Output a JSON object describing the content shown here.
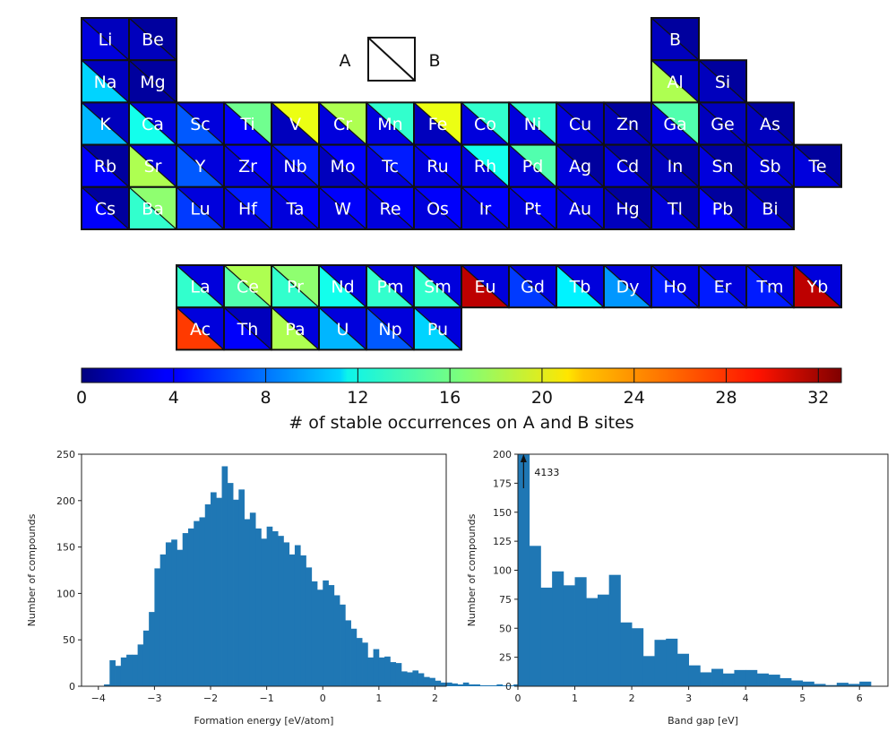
{
  "legend": {
    "a_label": "A",
    "b_label": "B"
  },
  "colorbar": {
    "min": 0,
    "max": 33,
    "ticks": [
      "0",
      "4",
      "8",
      "12",
      "16",
      "20",
      "24",
      "28",
      "32"
    ],
    "tick_values": [
      0,
      4,
      8,
      12,
      16,
      20,
      24,
      28,
      32
    ],
    "title": "# of stable occurrences on A and B sites",
    "colormap": "jet"
  },
  "periodic_table": {
    "cells": [
      {
        "el": "Li",
        "row": 0,
        "col": 0,
        "a": 3,
        "b": 2
      },
      {
        "el": "Be",
        "row": 0,
        "col": 1,
        "a": 2,
        "b": 1
      },
      {
        "el": "B",
        "row": 0,
        "col": 12,
        "a": 2,
        "b": 1
      },
      {
        "el": "Na",
        "row": 1,
        "col": 0,
        "a": 11,
        "b": 2
      },
      {
        "el": "Mg",
        "row": 1,
        "col": 1,
        "a": 1,
        "b": 1
      },
      {
        "el": "Al",
        "row": 1,
        "col": 12,
        "a": 18,
        "b": 2
      },
      {
        "el": "Si",
        "row": 1,
        "col": 13,
        "a": 2,
        "b": 1
      },
      {
        "el": "K",
        "row": 2,
        "col": 0,
        "a": 10,
        "b": 2
      },
      {
        "el": "Ca",
        "row": 2,
        "col": 1,
        "a": 13,
        "b": 3
      },
      {
        "el": "Sc",
        "row": 2,
        "col": 2,
        "a": 7,
        "b": 3
      },
      {
        "el": "Ti",
        "row": 2,
        "col": 3,
        "a": 4,
        "b": 16
      },
      {
        "el": "V",
        "row": 2,
        "col": 4,
        "a": 2,
        "b": 20
      },
      {
        "el": "Cr",
        "row": 2,
        "col": 5,
        "a": 3,
        "b": 18
      },
      {
        "el": "Mn",
        "row": 2,
        "col": 6,
        "a": 3,
        "b": 14
      },
      {
        "el": "Fe",
        "row": 2,
        "col": 7,
        "a": 2,
        "b": 20
      },
      {
        "el": "Co",
        "row": 2,
        "col": 8,
        "a": 3,
        "b": 14
      },
      {
        "el": "Ni",
        "row": 2,
        "col": 9,
        "a": 3,
        "b": 14
      },
      {
        "el": "Cu",
        "row": 2,
        "col": 10,
        "a": 3,
        "b": 2
      },
      {
        "el": "Zn",
        "row": 2,
        "col": 11,
        "a": 2,
        "b": 1
      },
      {
        "el": "Ga",
        "row": 2,
        "col": 12,
        "a": 3,
        "b": 15
      },
      {
        "el": "Ge",
        "row": 2,
        "col": 13,
        "a": 2,
        "b": 2
      },
      {
        "el": "As",
        "row": 2,
        "col": 14,
        "a": 2,
        "b": 1
      },
      {
        "el": "Rb",
        "row": 3,
        "col": 0,
        "a": 4,
        "b": 1
      },
      {
        "el": "Sr",
        "row": 3,
        "col": 1,
        "a": 18,
        "b": 3
      },
      {
        "el": "Y",
        "row": 3,
        "col": 2,
        "a": 7,
        "b": 3
      },
      {
        "el": "Zr",
        "row": 3,
        "col": 3,
        "a": 3,
        "b": 4
      },
      {
        "el": "Nb",
        "row": 3,
        "col": 4,
        "a": 3,
        "b": 5
      },
      {
        "el": "Mo",
        "row": 3,
        "col": 5,
        "a": 2,
        "b": 4
      },
      {
        "el": "Tc",
        "row": 3,
        "col": 6,
        "a": 3,
        "b": 5
      },
      {
        "el": "Ru",
        "row": 3,
        "col": 7,
        "a": 3,
        "b": 4
      },
      {
        "el": "Rh",
        "row": 3,
        "col": 8,
        "a": 3,
        "b": 13
      },
      {
        "el": "Pd",
        "row": 3,
        "col": 9,
        "a": 3,
        "b": 15
      },
      {
        "el": "Ag",
        "row": 3,
        "col": 10,
        "a": 3,
        "b": 1
      },
      {
        "el": "Cd",
        "row": 3,
        "col": 11,
        "a": 3,
        "b": 1
      },
      {
        "el": "In",
        "row": 3,
        "col": 12,
        "a": 2,
        "b": 1
      },
      {
        "el": "Sn",
        "row": 3,
        "col": 13,
        "a": 3,
        "b": 1
      },
      {
        "el": "Sb",
        "row": 3,
        "col": 14,
        "a": 3,
        "b": 2
      },
      {
        "el": "Te",
        "row": 3,
        "col": 15,
        "a": 3,
        "b": 1
      },
      {
        "el": "Cs",
        "row": 4,
        "col": 0,
        "a": 4,
        "b": 1
      },
      {
        "el": "Ba",
        "row": 4,
        "col": 1,
        "a": 14,
        "b": 17
      },
      {
        "el": "Lu",
        "row": 4,
        "col": 2,
        "a": 6,
        "b": 3
      },
      {
        "el": "Hf",
        "row": 4,
        "col": 3,
        "a": 3,
        "b": 5
      },
      {
        "el": "Ta",
        "row": 4,
        "col": 4,
        "a": 3,
        "b": 4
      },
      {
        "el": "W",
        "row": 4,
        "col": 5,
        "a": 3,
        "b": 4
      },
      {
        "el": "Re",
        "row": 4,
        "col": 6,
        "a": 3,
        "b": 4
      },
      {
        "el": "Os",
        "row": 4,
        "col": 7,
        "a": 3,
        "b": 4
      },
      {
        "el": "Ir",
        "row": 4,
        "col": 8,
        "a": 3,
        "b": 4
      },
      {
        "el": "Pt",
        "row": 4,
        "col": 9,
        "a": 3,
        "b": 4
      },
      {
        "el": "Au",
        "row": 4,
        "col": 10,
        "a": 3,
        "b": 3
      },
      {
        "el": "Hg",
        "row": 4,
        "col": 11,
        "a": 2,
        "b": 1
      },
      {
        "el": "Tl",
        "row": 4,
        "col": 12,
        "a": 3,
        "b": 1
      },
      {
        "el": "Pb",
        "row": 4,
        "col": 13,
        "a": 4,
        "b": 1
      },
      {
        "el": "Bi",
        "row": 4,
        "col": 14,
        "a": 3,
        "b": 1
      },
      {
        "el": "La",
        "row": 6,
        "col": 2,
        "a": 14,
        "b": 3
      },
      {
        "el": "Ce",
        "row": 6,
        "col": 3,
        "a": 15,
        "b": 18
      },
      {
        "el": "Pr",
        "row": 6,
        "col": 4,
        "a": 14,
        "b": 17
      },
      {
        "el": "Nd",
        "row": 6,
        "col": 5,
        "a": 13,
        "b": 3
      },
      {
        "el": "Pm",
        "row": 6,
        "col": 6,
        "a": 14,
        "b": 3
      },
      {
        "el": "Sm",
        "row": 6,
        "col": 7,
        "a": 14,
        "b": 3
      },
      {
        "el": "Eu",
        "row": 6,
        "col": 8,
        "a": 31,
        "b": 3
      },
      {
        "el": "Gd",
        "row": 6,
        "col": 9,
        "a": 6,
        "b": 3
      },
      {
        "el": "Tb",
        "row": 6,
        "col": 10,
        "a": 12,
        "b": 3
      },
      {
        "el": "Dy",
        "row": 6,
        "col": 11,
        "a": 9,
        "b": 3
      },
      {
        "el": "Ho",
        "row": 6,
        "col": 12,
        "a": 5,
        "b": 3
      },
      {
        "el": "Er",
        "row": 6,
        "col": 13,
        "a": 5,
        "b": 3
      },
      {
        "el": "Tm",
        "row": 6,
        "col": 14,
        "a": 5,
        "b": 3
      },
      {
        "el": "Yb",
        "row": 6,
        "col": 15,
        "a": 31,
        "b": 3
      },
      {
        "el": "Ac",
        "row": 7,
        "col": 2,
        "a": 27,
        "b": 3
      },
      {
        "el": "Th",
        "row": 7,
        "col": 3,
        "a": 4,
        "b": 2
      },
      {
        "el": "Pa",
        "row": 7,
        "col": 4,
        "a": 18,
        "b": 3
      },
      {
        "el": "U",
        "row": 7,
        "col": 5,
        "a": 10,
        "b": 3
      },
      {
        "el": "Np",
        "row": 7,
        "col": 6,
        "a": 7,
        "b": 3
      },
      {
        "el": "Pu",
        "row": 7,
        "col": 7,
        "a": 11,
        "b": 3
      }
    ]
  },
  "chart_data": [
    {
      "type": "bar",
      "xlabel": "Formation energy [eV/atom]",
      "ylabel": "Number of compounds",
      "xlim": [
        -4.3,
        2.2
      ],
      "ylim": [
        0,
        250
      ],
      "xticks": [
        -4,
        -3,
        -2,
        -1,
        0,
        1,
        2
      ],
      "xtick_labels": [
        "−4",
        "−3",
        "−2",
        "−1",
        "0",
        "1",
        "2"
      ],
      "yticks": [
        0,
        50,
        100,
        150,
        200,
        250
      ],
      "bin_start": -3.9,
      "bin_width": 0.1,
      "values": [
        2,
        28,
        22,
        31,
        34,
        34,
        45,
        60,
        80,
        127,
        142,
        155,
        158,
        147,
        165,
        170,
        178,
        182,
        196,
        209,
        203,
        237,
        219,
        201,
        212,
        180,
        187,
        170,
        159,
        172,
        167,
        162,
        155,
        142,
        152,
        141,
        128,
        113,
        104,
        114,
        109,
        98,
        88,
        71,
        62,
        52,
        47,
        31,
        40,
        31,
        32,
        26,
        25,
        16,
        15,
        17,
        14,
        10,
        9,
        6,
        4,
        4,
        3,
        2,
        4,
        2,
        2,
        1,
        1,
        1,
        2,
        1,
        1,
        2,
        1,
        2,
        1,
        1
      ]
    },
    {
      "type": "bar",
      "xlabel": "Band gap [eV]",
      "ylabel": "Number of compounds",
      "xlim": [
        0,
        6.5
      ],
      "ylim": [
        0,
        200
      ],
      "xticks": [
        0,
        1,
        2,
        3,
        4,
        5,
        6
      ],
      "xtick_labels": [
        "0",
        "1",
        "2",
        "3",
        "4",
        "5",
        "6"
      ],
      "yticks": [
        0,
        25,
        50,
        75,
        100,
        125,
        150,
        175,
        200
      ],
      "bin_width": 0.2,
      "values": [
        4133,
        121,
        85,
        99,
        87,
        94,
        76,
        79,
        96,
        55,
        50,
        26,
        40,
        41,
        28,
        18,
        12,
        15,
        11,
        14,
        14,
        11,
        10,
        7,
        5,
        4,
        2,
        1,
        3,
        2,
        4
      ],
      "annotation": "4133"
    }
  ]
}
